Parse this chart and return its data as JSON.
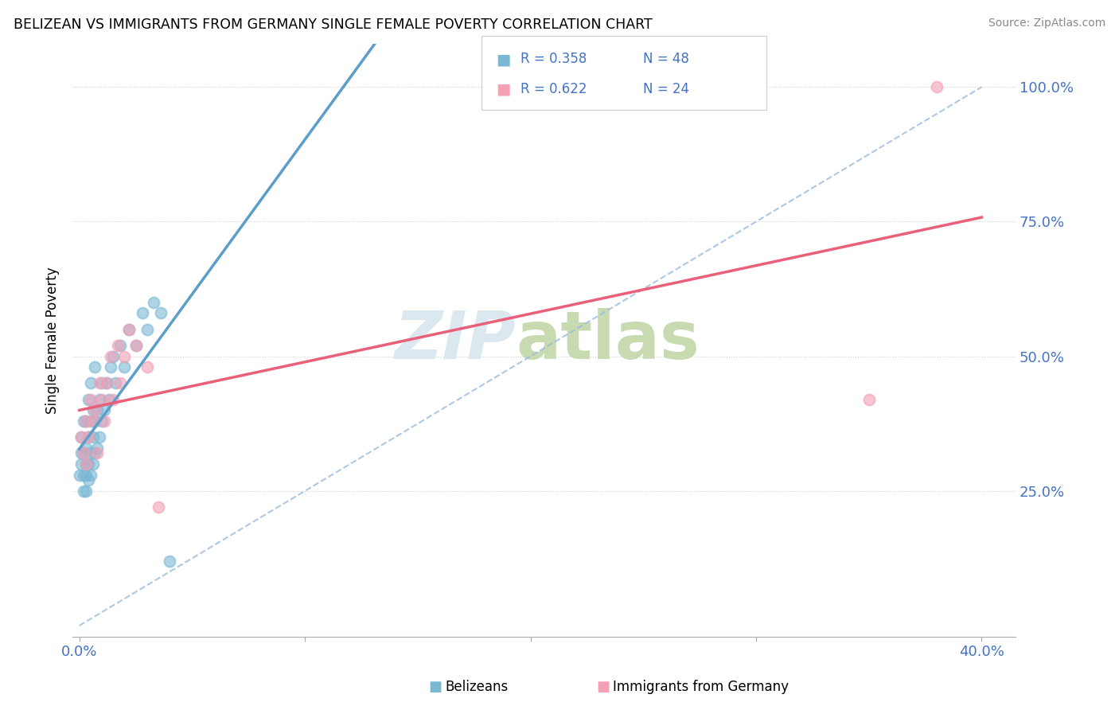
{
  "title": "BELIZEAN VS IMMIGRANTS FROM GERMANY SINGLE FEMALE POVERTY CORRELATION CHART",
  "source": "Source: ZipAtlas.com",
  "ylabel": "Single Female Poverty",
  "xlim": [
    -0.003,
    0.415
  ],
  "ylim": [
    -0.02,
    1.08
  ],
  "xtick_vals": [
    0.0,
    0.1,
    0.2,
    0.3,
    0.4
  ],
  "xticklabels": [
    "0.0%",
    "",
    "",
    "",
    "40.0%"
  ],
  "ytick_vals": [
    0.25,
    0.5,
    0.75,
    1.0
  ],
  "yticklabels": [
    "25.0%",
    "50.0%",
    "75.0%",
    "100.0%"
  ],
  "belizean_color": "#7bb8d4",
  "germany_color": "#f4a0b5",
  "belizean_line_color": "#5b9ec9",
  "germany_line_color": "#e8607a",
  "dashed_line_color": "#99bbdd",
  "legend_color": "#4472c4",
  "watermark_zip_color": "#dce8f0",
  "watermark_atlas_color": "#c8dbb0",
  "belizean_R": 0.358,
  "belizean_N": 48,
  "germany_R": 0.622,
  "germany_N": 24,
  "bx": [
    0.0,
    0.001,
    0.001,
    0.001,
    0.002,
    0.002,
    0.002,
    0.002,
    0.003,
    0.003,
    0.003,
    0.003,
    0.003,
    0.004,
    0.004,
    0.004,
    0.004,
    0.005,
    0.005,
    0.005,
    0.005,
    0.006,
    0.006,
    0.006,
    0.007,
    0.007,
    0.007,
    0.008,
    0.008,
    0.009,
    0.009,
    0.01,
    0.01,
    0.011,
    0.012,
    0.013,
    0.014,
    0.015,
    0.016,
    0.018,
    0.02,
    0.022,
    0.025,
    0.028,
    0.03,
    0.033,
    0.036,
    0.04
  ],
  "by": [
    0.28,
    0.3,
    0.32,
    0.35,
    0.25,
    0.28,
    0.32,
    0.38,
    0.25,
    0.28,
    0.3,
    0.33,
    0.38,
    0.27,
    0.3,
    0.35,
    0.42,
    0.28,
    0.32,
    0.38,
    0.45,
    0.3,
    0.35,
    0.4,
    0.32,
    0.38,
    0.48,
    0.33,
    0.4,
    0.35,
    0.42,
    0.38,
    0.45,
    0.4,
    0.45,
    0.42,
    0.48,
    0.5,
    0.45,
    0.52,
    0.48,
    0.55,
    0.52,
    0.58,
    0.55,
    0.6,
    0.58,
    0.12
  ],
  "gx": [
    0.001,
    0.002,
    0.003,
    0.003,
    0.004,
    0.005,
    0.006,
    0.007,
    0.008,
    0.009,
    0.01,
    0.011,
    0.012,
    0.014,
    0.015,
    0.017,
    0.018,
    0.02,
    0.022,
    0.025,
    0.03,
    0.035,
    0.35,
    0.38
  ],
  "gy": [
    0.35,
    0.32,
    0.3,
    0.38,
    0.35,
    0.42,
    0.38,
    0.4,
    0.32,
    0.45,
    0.42,
    0.38,
    0.45,
    0.5,
    0.42,
    0.52,
    0.45,
    0.5,
    0.55,
    0.52,
    0.48,
    0.22,
    0.42,
    1.0
  ]
}
